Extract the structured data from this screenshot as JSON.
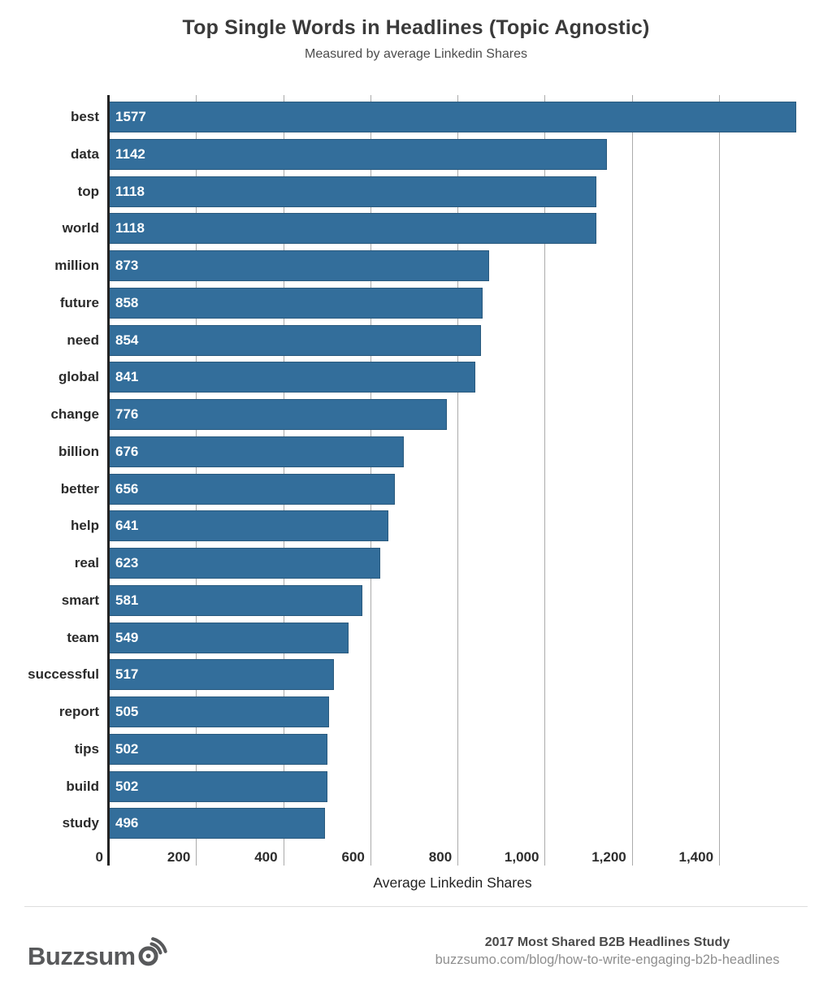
{
  "page": {
    "background": "#ffffff"
  },
  "chart_data": {
    "type": "bar",
    "orientation": "horizontal",
    "title": "Top Single Words in Headlines (Topic Agnostic)",
    "subtitle": "Measured by average Linkedin Shares",
    "xlabel": "Average Linkedin Shares",
    "categories": [
      "best",
      "data",
      "top",
      "world",
      "million",
      "future",
      "need",
      "global",
      "change",
      "billion",
      "better",
      "help",
      "real",
      "smart",
      "team",
      "successful",
      "report",
      "tips",
      "build",
      "study"
    ],
    "values": [
      1577,
      1142,
      1118,
      1118,
      873,
      858,
      854,
      841,
      776,
      676,
      656,
      641,
      623,
      581,
      549,
      517,
      505,
      502,
      502,
      496
    ],
    "value_labels": [
      "1577",
      "1142",
      "1118",
      "1118",
      "873",
      "858",
      "854",
      "841",
      "776",
      "676",
      "656",
      "641",
      "623",
      "581",
      "549",
      "517",
      "505",
      "502",
      "502",
      "496"
    ],
    "xlim": [
      0,
      1577
    ],
    "x_tick_values": [
      0,
      200,
      400,
      600,
      800,
      1000,
      1200,
      1400
    ],
    "x_tick_labels": [
      "0",
      "200",
      "400",
      "600",
      "800",
      "1,000",
      "1,200",
      "1,400"
    ],
    "grid": true,
    "legend": false,
    "bar_color": "#336e9b",
    "bar_border_color": "#2a5a7e",
    "gridline_color": "#ababab",
    "axis_line_color": "#222222",
    "value_label_color": "#ffffff"
  },
  "footer": {
    "brand_name": "Buzzsumo",
    "wordmark_prefix": "Buzzsum",
    "logo_color": "#58595b",
    "study_title": "2017 Most Shared B2B Headlines Study",
    "source_url": "buzzsumo.com/blog/how-to-write-engaging-b2b-headlines"
  }
}
